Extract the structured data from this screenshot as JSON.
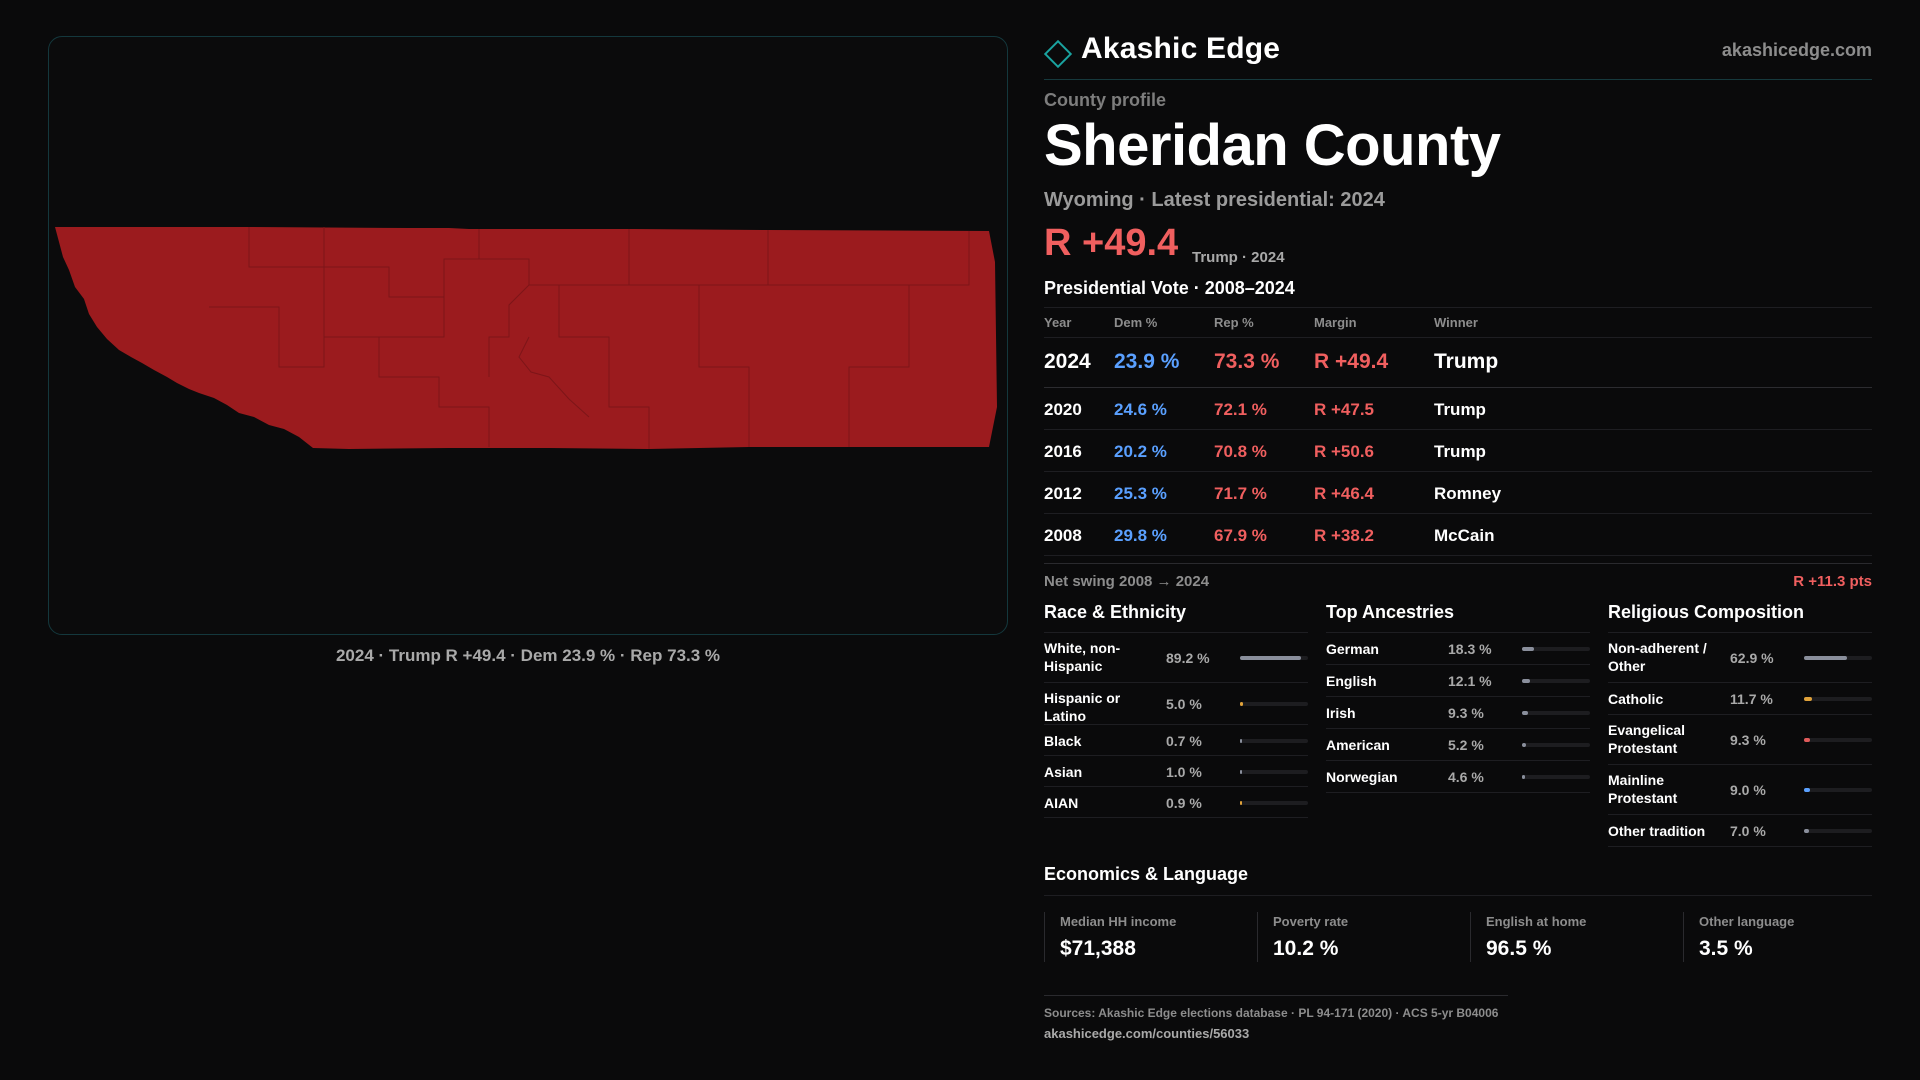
{
  "brand": {
    "name": "Akashic Edge",
    "site": "akashicedge.com",
    "logo_icon": "diamond-outline-icon",
    "accent_color": "#1aa3a0"
  },
  "map": {
    "fill_color": "#9b1b1e",
    "caption": "2024 · Trump R +49.4 · Dem 23.9 % · Rep 73.3 %"
  },
  "profile": {
    "eyebrow": "County profile",
    "county": "Sheridan County",
    "subhead": "Wyoming · Latest presidential: 2024",
    "margin": "R +49.4",
    "margin_note": "Trump · 2024"
  },
  "vote": {
    "title": "Presidential Vote · 2008–2024",
    "headers": {
      "year": "Year",
      "dem": "Dem %",
      "rep": "Rep %",
      "margin": "Margin",
      "winner": "Winner"
    },
    "rows": [
      {
        "year": "2024",
        "dem": "23.9 %",
        "rep": "73.3 %",
        "margin": "R +49.4",
        "winner": "Trump"
      },
      {
        "year": "2020",
        "dem": "24.6 %",
        "rep": "72.1 %",
        "margin": "R +47.5",
        "winner": "Trump"
      },
      {
        "year": "2016",
        "dem": "20.2 %",
        "rep": "70.8 %",
        "margin": "R +50.6",
        "winner": "Trump"
      },
      {
        "year": "2012",
        "dem": "25.3 %",
        "rep": "71.7 %",
        "margin": "R +46.4",
        "winner": "Romney"
      },
      {
        "year": "2008",
        "dem": "29.8 %",
        "rep": "67.9 %",
        "margin": "R +38.2",
        "winner": "McCain"
      }
    ],
    "swing_label": "Net swing 2008 → 2024",
    "swing_value": "R +11.3 pts"
  },
  "race": {
    "title": "Race & Ethnicity",
    "items": [
      {
        "label": "White, non-Hispanic",
        "pct": "89.2 %",
        "value": 89.2,
        "color": "#8a8f9c"
      },
      {
        "label": "Hispanic or Latino",
        "pct": "5.0 %",
        "value": 5.0,
        "color": "#e0a23a"
      },
      {
        "label": "Black",
        "pct": "0.7 %",
        "value": 0.7,
        "color": "#8a8f9c"
      },
      {
        "label": "Asian",
        "pct": "1.0 %",
        "value": 1.0,
        "color": "#8a8f9c"
      },
      {
        "label": "AIAN",
        "pct": "0.9 %",
        "value": 0.9,
        "color": "#e0a23a"
      }
    ]
  },
  "ancestry": {
    "title": "Top Ancestries",
    "items": [
      {
        "label": "German",
        "pct": "18.3 %",
        "value": 18.3,
        "color": "#8a8f9c"
      },
      {
        "label": "English",
        "pct": "12.1 %",
        "value": 12.1,
        "color": "#8a8f9c"
      },
      {
        "label": "Irish",
        "pct": "9.3 %",
        "value": 9.3,
        "color": "#8a8f9c"
      },
      {
        "label": "American",
        "pct": "5.2 %",
        "value": 5.2,
        "color": "#8a8f9c"
      },
      {
        "label": "Norwegian",
        "pct": "4.6 %",
        "value": 4.6,
        "color": "#8a8f9c"
      }
    ]
  },
  "religion": {
    "title": "Religious Composition",
    "items": [
      {
        "label": "Non-adherent / Other",
        "pct": "62.9 %",
        "value": 62.9,
        "color": "#8a8f9c"
      },
      {
        "label": "Catholic",
        "pct": "11.7 %",
        "value": 11.7,
        "color": "#e0a23a"
      },
      {
        "label": "Evangelical Protestant",
        "pct": "9.3 %",
        "value": 9.3,
        "color": "#e05a5a"
      },
      {
        "label": "Mainline Protestant",
        "pct": "9.0 %",
        "value": 9.0,
        "color": "#5aa0ff"
      },
      {
        "label": "Other tradition",
        "pct": "7.0 %",
        "value": 7.0,
        "color": "#8a8f9c"
      }
    ]
  },
  "economics": {
    "title": "Economics & Language",
    "cards": [
      {
        "label": "Median HH income",
        "value": "$71,388"
      },
      {
        "label": "Poverty rate",
        "value": "10.2 %"
      },
      {
        "label": "English at home",
        "value": "96.5 %"
      },
      {
        "label": "Other language",
        "value": "3.5 %"
      }
    ]
  },
  "footer": {
    "sources": "Sources: Akashic Edge elections database · PL 94-171 (2020) · ACS 5-yr B04006",
    "url": "akashicedge.com/counties/56033"
  }
}
